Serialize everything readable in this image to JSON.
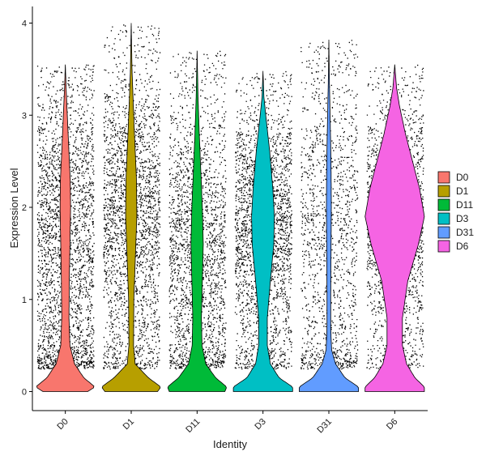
{
  "chart_data": {
    "type": "violin",
    "xlabel": "Identity",
    "ylabel": "Expression Level",
    "ylim": [
      -0.2,
      4.15
    ],
    "yticks": [
      0,
      1,
      2,
      3,
      4
    ],
    "grid": false,
    "legend_position": "right",
    "categories": [
      "D0",
      "D1",
      "D11",
      "D3",
      "D31",
      "D6"
    ],
    "series": [
      {
        "name": "D0",
        "color": "#F8766D",
        "max": 3.55,
        "profile": [
          [
            0,
            0.34
          ],
          [
            0.05,
            0.45
          ],
          [
            0.15,
            0.28
          ],
          [
            0.3,
            0.14
          ],
          [
            0.5,
            0.07
          ],
          [
            0.8,
            0.055
          ],
          [
            1.2,
            0.06
          ],
          [
            1.6,
            0.07
          ],
          [
            2.0,
            0.08
          ],
          [
            2.3,
            0.075
          ],
          [
            2.6,
            0.055
          ],
          [
            3.0,
            0.03
          ],
          [
            3.3,
            0.012
          ],
          [
            3.55,
            0
          ]
        ]
      },
      {
        "name": "D1",
        "color": "#B79F00",
        "max": 4.0,
        "profile": [
          [
            0,
            0.4
          ],
          [
            0.05,
            0.45
          ],
          [
            0.15,
            0.26
          ],
          [
            0.3,
            0.06
          ],
          [
            0.5,
            0.035
          ],
          [
            1.0,
            0.04
          ],
          [
            1.5,
            0.065
          ],
          [
            1.9,
            0.085
          ],
          [
            2.3,
            0.08
          ],
          [
            2.7,
            0.055
          ],
          [
            3.1,
            0.032
          ],
          [
            3.5,
            0.012
          ],
          [
            4.0,
            0
          ]
        ]
      },
      {
        "name": "D11",
        "color": "#00BA38",
        "max": 3.7,
        "profile": [
          [
            0,
            0.45
          ],
          [
            0.05,
            0.48
          ],
          [
            0.15,
            0.3
          ],
          [
            0.3,
            0.14
          ],
          [
            0.5,
            0.08
          ],
          [
            0.8,
            0.07
          ],
          [
            1.2,
            0.085
          ],
          [
            1.6,
            0.1
          ],
          [
            2.0,
            0.085
          ],
          [
            2.4,
            0.06
          ],
          [
            2.8,
            0.035
          ],
          [
            3.2,
            0.015
          ],
          [
            3.7,
            0
          ]
        ]
      },
      {
        "name": "D3",
        "color": "#00BFC4",
        "max": 3.48,
        "profile": [
          [
            0,
            0.48
          ],
          [
            0.05,
            0.48
          ],
          [
            0.15,
            0.26
          ],
          [
            0.3,
            0.12
          ],
          [
            0.5,
            0.07
          ],
          [
            0.8,
            0.07
          ],
          [
            1.2,
            0.12
          ],
          [
            1.6,
            0.175
          ],
          [
            1.9,
            0.185
          ],
          [
            2.2,
            0.16
          ],
          [
            2.6,
            0.11
          ],
          [
            3.0,
            0.045
          ],
          [
            3.2,
            0.015
          ],
          [
            3.48,
            0
          ]
        ]
      },
      {
        "name": "D31",
        "color": "#619CFF",
        "max": 3.82,
        "profile": [
          [
            0,
            0.48
          ],
          [
            0.05,
            0.48
          ],
          [
            0.15,
            0.26
          ],
          [
            0.3,
            0.11
          ],
          [
            0.45,
            0.045
          ],
          [
            0.7,
            0.03
          ],
          [
            1.0,
            0.03
          ],
          [
            1.5,
            0.035
          ],
          [
            2.0,
            0.04
          ],
          [
            2.5,
            0.035
          ],
          [
            3.0,
            0.02
          ],
          [
            3.4,
            0.008
          ],
          [
            3.82,
            0
          ]
        ]
      },
      {
        "name": "D6",
        "color": "#F564E3",
        "max": 3.55,
        "profile": [
          [
            0,
            0.5
          ],
          [
            0.05,
            0.5
          ],
          [
            0.15,
            0.34
          ],
          [
            0.3,
            0.2
          ],
          [
            0.5,
            0.13
          ],
          [
            0.8,
            0.13
          ],
          [
            1.2,
            0.22
          ],
          [
            1.6,
            0.4
          ],
          [
            1.9,
            0.5
          ],
          [
            2.2,
            0.42
          ],
          [
            2.5,
            0.3
          ],
          [
            2.8,
            0.18
          ],
          [
            3.1,
            0.08
          ],
          [
            3.3,
            0.03
          ],
          [
            3.55,
            0
          ]
        ]
      }
    ]
  }
}
